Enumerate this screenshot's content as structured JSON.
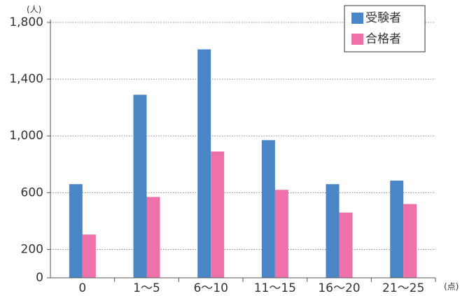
{
  "chart_data": {
    "type": "bar",
    "y_unit": "(人)",
    "x_unit": "(点)",
    "categories": [
      "0",
      "1〜5",
      "6〜10",
      "11〜15",
      "16〜20",
      "21〜25"
    ],
    "series": [
      {
        "name": "受験者",
        "color": "#4a86c5",
        "values": [
          660,
          1290,
          1610,
          970,
          660,
          685
        ]
      },
      {
        "name": "合格者",
        "color": "#ee72a9",
        "values": [
          305,
          570,
          890,
          620,
          460,
          520
        ]
      }
    ],
    "ylim": [
      0,
      1800
    ],
    "yticks": [
      0,
      200,
      600,
      {
        "value": 1000,
        "label": "1,000"
      },
      {
        "value": 1400,
        "label": "1,400"
      },
      {
        "value": 1800,
        "label": "1,800"
      }
    ],
    "grid": true,
    "legend": "top-right"
  }
}
